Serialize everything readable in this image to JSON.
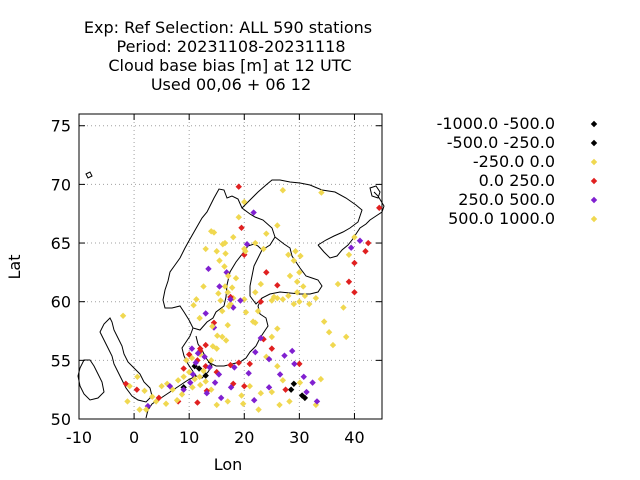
{
  "title": {
    "line1": "Exp: Ref   Selection: ALL    590 stations",
    "line2": "Period: 20231108-20231118",
    "line3": "Cloud base bias [m] at  12 UTC",
    "line4": "Used  00,06  + 06 12"
  },
  "chart_data": {
    "type": "scatter",
    "xlabel": "Lon",
    "ylabel": "Lat",
    "xlim": [
      -10,
      45
    ],
    "ylim": [
      50,
      76
    ],
    "xticks": [
      -10,
      0,
      10,
      20,
      30,
      40
    ],
    "yticks": [
      50,
      55,
      60,
      65,
      70,
      75
    ],
    "grid": true,
    "legend_position": "right",
    "series": [
      {
        "name": "-1000.0 -500.0",
        "color": "#000000",
        "points": [
          [
            11.8,
            54.3
          ],
          [
            29,
            53
          ],
          [
            30.5,
            52
          ],
          [
            11,
            54.5
          ]
        ]
      },
      {
        "name": "-500.0 -250.0",
        "color": "#000000",
        "points": [
          [
            31,
            51.8
          ],
          [
            13,
            53.7
          ],
          [
            9,
            52.7
          ],
          [
            28.5,
            52.5
          ]
        ]
      },
      {
        "name": "-250.0 0.0",
        "color": "#f0d850",
        "points": [
          [
            -2,
            58.8
          ],
          [
            1,
            50.8
          ],
          [
            4,
            51.5
          ],
          [
            5,
            52.8
          ],
          [
            6,
            53
          ],
          [
            7,
            52.5
          ],
          [
            8,
            53.3
          ],
          [
            9,
            53.6
          ],
          [
            10,
            54
          ],
          [
            11,
            53.4
          ],
          [
            12,
            52.9
          ],
          [
            13,
            53.2
          ],
          [
            14,
            52.5
          ],
          [
            9.5,
            55
          ],
          [
            10.5,
            55.2
          ],
          [
            12,
            55.5
          ],
          [
            14,
            55
          ],
          [
            15,
            56
          ],
          [
            16,
            57
          ],
          [
            17,
            58
          ],
          [
            16,
            59.2
          ],
          [
            17.5,
            59.8
          ],
          [
            18,
            60.3
          ],
          [
            17,
            60.8
          ],
          [
            16.5,
            61.3
          ],
          [
            18.5,
            62
          ],
          [
            15.5,
            63.5
          ],
          [
            15,
            64.3
          ],
          [
            16.5,
            65
          ],
          [
            18,
            65.5
          ],
          [
            20,
            64.5
          ],
          [
            22,
            65
          ],
          [
            24,
            65.8
          ],
          [
            26,
            66.5
          ],
          [
            27,
            69.5
          ],
          [
            28,
            64
          ],
          [
            30,
            62.5
          ],
          [
            29,
            63.5
          ],
          [
            31,
            60.5
          ],
          [
            26,
            60.3
          ],
          [
            25,
            60.1
          ],
          [
            27,
            60.2
          ],
          [
            28,
            60.5
          ],
          [
            29,
            59.8
          ],
          [
            30,
            60
          ],
          [
            33,
            60.3
          ],
          [
            34,
            69.3
          ],
          [
            37,
            61.5
          ],
          [
            38,
            59.5
          ],
          [
            38.5,
            57
          ],
          [
            39,
            64
          ],
          [
            40,
            65.5
          ],
          [
            24,
            55.3
          ],
          [
            26,
            54.5
          ],
          [
            27,
            53.3
          ],
          [
            25,
            52.3
          ],
          [
            23,
            52.2
          ],
          [
            21,
            52.8
          ],
          [
            19.5,
            52
          ],
          [
            17,
            51.5
          ],
          [
            15,
            51.2
          ],
          [
            33,
            51.2
          ],
          [
            25,
            57
          ],
          [
            26,
            57.7
          ],
          [
            22,
            58.2
          ],
          [
            22,
            60.8
          ],
          [
            23,
            61.5
          ],
          [
            20,
            60.2
          ],
          [
            14,
            66
          ],
          [
            13,
            64.5
          ],
          [
            20,
            68.5
          ],
          [
            19,
            67.2
          ]
        ]
      },
      {
        "name": "0.0 250.0",
        "color": "#e02020",
        "points": [
          [
            19,
            69.8
          ],
          [
            19.5,
            66.3
          ],
          [
            20,
            64
          ],
          [
            42.5,
            65
          ],
          [
            42,
            64.3
          ],
          [
            40,
            63.3
          ],
          [
            39,
            61.7
          ],
          [
            40,
            60.8
          ],
          [
            44.5,
            68
          ],
          [
            24,
            62.5
          ],
          [
            26,
            61.4
          ],
          [
            23,
            60
          ],
          [
            17.5,
            60.4
          ],
          [
            14.5,
            58.2
          ],
          [
            13,
            56.3
          ],
          [
            12,
            55.8
          ],
          [
            10,
            55.5
          ],
          [
            11.5,
            55
          ],
          [
            9,
            54.3
          ],
          [
            13,
            54.5
          ],
          [
            15,
            54
          ],
          [
            17.5,
            54.6
          ],
          [
            19,
            54.8
          ],
          [
            21,
            54.7
          ],
          [
            18,
            53
          ],
          [
            20,
            52.8
          ],
          [
            27.5,
            52.5
          ],
          [
            30,
            54.7
          ],
          [
            12,
            56
          ],
          [
            -1.5,
            53
          ],
          [
            0.5,
            52.5
          ],
          [
            4.5,
            51.8
          ],
          [
            8,
            51.5
          ],
          [
            11.5,
            51.4
          ],
          [
            13.2,
            52.4
          ],
          [
            23.5,
            56.8
          ],
          [
            25,
            56
          ]
        ]
      },
      {
        "name": "250.0 500.0",
        "color": "#8020d0",
        "points": [
          [
            21.7,
            67.6
          ],
          [
            20.5,
            64.9
          ],
          [
            15.5,
            61.3
          ],
          [
            16.8,
            62.5
          ],
          [
            13.5,
            62.8
          ],
          [
            17.5,
            60.2
          ],
          [
            18,
            59.5
          ],
          [
            13,
            59
          ],
          [
            14.5,
            57.8
          ],
          [
            10.5,
            56
          ],
          [
            11.6,
            55.6
          ],
          [
            12.8,
            55.3
          ],
          [
            13.7,
            54.4
          ],
          [
            11.2,
            54.8
          ],
          [
            10.2,
            53.1
          ],
          [
            9,
            52.5
          ],
          [
            14.7,
            53.1
          ],
          [
            15.4,
            53.8
          ],
          [
            18.2,
            54.4
          ],
          [
            20.8,
            53.9
          ],
          [
            22,
            55.7
          ],
          [
            23,
            56.9
          ],
          [
            24.5,
            55.1
          ],
          [
            27.3,
            55.4
          ],
          [
            28.7,
            55.8
          ],
          [
            29.1,
            54.7
          ],
          [
            30.8,
            53.6
          ],
          [
            32.4,
            53.1
          ],
          [
            31.3,
            52.3
          ],
          [
            33.2,
            51.5
          ],
          [
            24.5,
            52.7
          ],
          [
            21.8,
            51.6
          ],
          [
            26.5,
            53.8
          ],
          [
            2.5,
            51.1
          ],
          [
            6.5,
            52.8
          ],
          [
            10.7,
            53.8
          ],
          [
            13.2,
            52.2
          ],
          [
            15.8,
            51.8
          ],
          [
            17.6,
            52.7
          ],
          [
            39.4,
            64.6
          ],
          [
            41,
            65.2
          ],
          [
            19.3,
            60.1
          ]
        ]
      },
      {
        "name": "500.0 1000.0",
        "color": "#f0d850",
        "points": [
          [
            14.5,
            65.9
          ],
          [
            16.1,
            64.9
          ],
          [
            16.6,
            64.1
          ],
          [
            20.2,
            64.3
          ],
          [
            23.5,
            64.5
          ],
          [
            29.3,
            64.3
          ],
          [
            30.2,
            63.9
          ],
          [
            28.3,
            62.2
          ],
          [
            29.6,
            61.7
          ],
          [
            30.7,
            61.3
          ],
          [
            29.6,
            60.8
          ],
          [
            25.4,
            60.4
          ],
          [
            31.8,
            59.8
          ],
          [
            34.5,
            58.3
          ],
          [
            35.4,
            57.4
          ],
          [
            36.1,
            56.3
          ],
          [
            22.5,
            59.2
          ],
          [
            21.6,
            58.3
          ],
          [
            20.3,
            59.1
          ],
          [
            15.3,
            60.7
          ],
          [
            15.7,
            60.1
          ],
          [
            17.2,
            59.6
          ],
          [
            17.8,
            61.2
          ],
          [
            17.1,
            62.2
          ],
          [
            16.4,
            63
          ],
          [
            12.6,
            61.3
          ],
          [
            11.3,
            60.2
          ],
          [
            10.8,
            59.7
          ],
          [
            11.9,
            58.6
          ],
          [
            14.2,
            57.9
          ],
          [
            15.1,
            57.1
          ],
          [
            16.7,
            56.7
          ],
          [
            14.3,
            56.2
          ],
          [
            12.6,
            54.1
          ],
          [
            11.9,
            53.6
          ],
          [
            10.6,
            52.7
          ],
          [
            8.7,
            52.1
          ],
          [
            7.8,
            51.6
          ],
          [
            5.8,
            51.3
          ],
          [
            3.3,
            51.9
          ],
          [
            1.9,
            52.4
          ],
          [
            0.6,
            53.6
          ],
          [
            -0.8,
            52.8
          ],
          [
            -1.2,
            51.5
          ],
          [
            2.2,
            50.8
          ],
          [
            19.8,
            51.3
          ],
          [
            22.6,
            50.8
          ],
          [
            26.4,
            51.2
          ],
          [
            28.2,
            51.5
          ],
          [
            30.1,
            53.1
          ],
          [
            33.9,
            53.4
          ]
        ]
      }
    ]
  }
}
